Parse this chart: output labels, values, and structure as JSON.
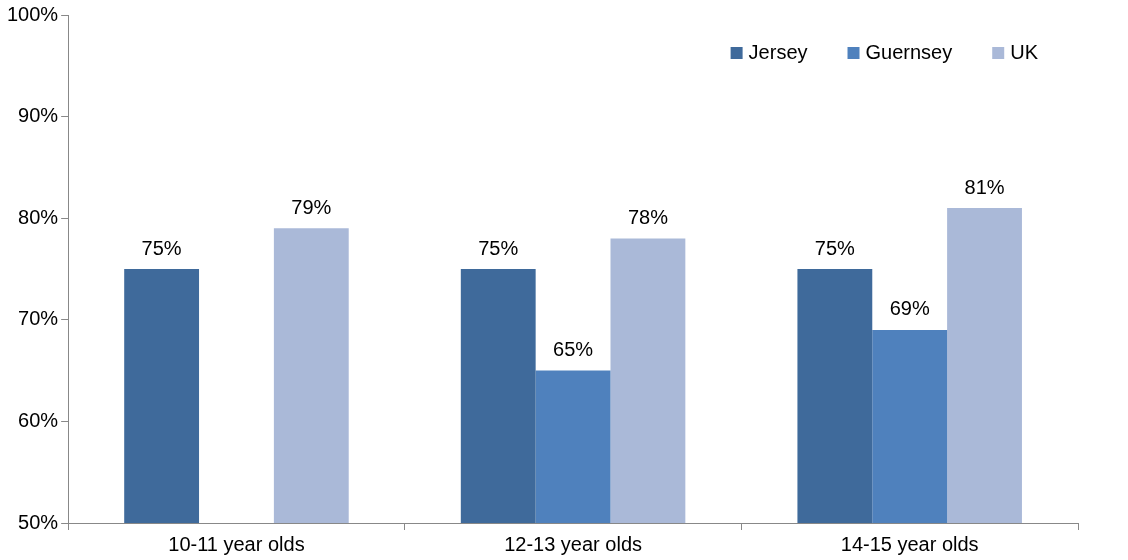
{
  "chart_data": {
    "type": "bar",
    "categories": [
      "10-11 year olds",
      "12-13 year olds",
      "14-15 year olds"
    ],
    "series": [
      {
        "name": "Jersey",
        "color": "#3f6a9b",
        "values": [
          75,
          75,
          75
        ],
        "value_labels": [
          "75%",
          "75%",
          "75%"
        ]
      },
      {
        "name": "Guernsey",
        "color": "#4f81bd",
        "values": [
          null,
          65,
          69
        ],
        "value_labels": [
          null,
          "65%",
          "69%"
        ]
      },
      {
        "name": "UK",
        "color": "#aab9d8",
        "values": [
          79,
          78,
          81
        ],
        "value_labels": [
          "79%",
          "78%",
          "81%"
        ]
      }
    ],
    "ylim": [
      50,
      100
    ],
    "yticks": [
      {
        "value": 50,
        "label": "50%"
      },
      {
        "value": 60,
        "label": "60%"
      },
      {
        "value": 70,
        "label": "70%"
      },
      {
        "value": 80,
        "label": "80%"
      },
      {
        "value": 90,
        "label": "90%"
      },
      {
        "value": 100,
        "label": "100%"
      }
    ],
    "grid": false,
    "legend": "top right"
  }
}
